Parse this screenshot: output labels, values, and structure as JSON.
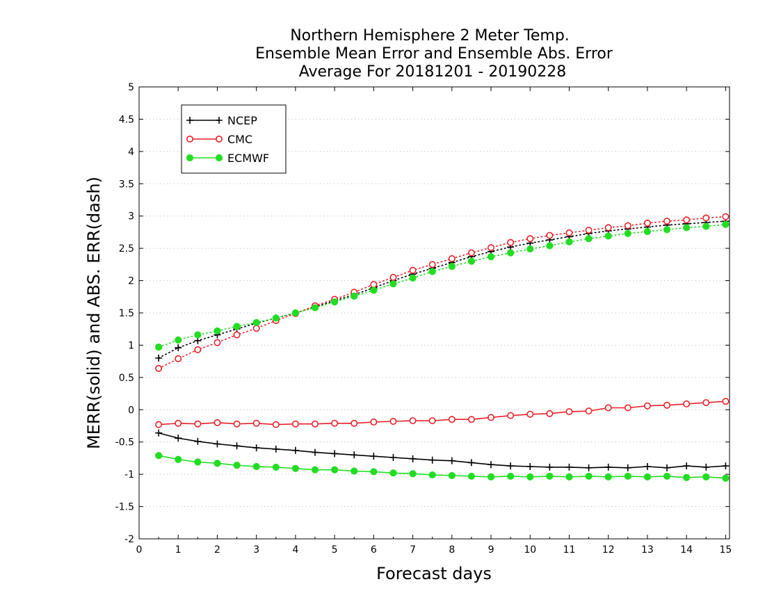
{
  "chart_data": {
    "type": "line",
    "title_lines": [
      "Northern Hemisphere 2 Meter Temp.",
      "Ensemble Mean Error and Ensemble Abs. Error",
      "Average For 20181201 - 20190228"
    ],
    "xlabel": "Forecast days",
    "ylabel": "MERR(solid) and ABS. ERR(dash)",
    "xlim": [
      0,
      15.1
    ],
    "ylim": [
      -2,
      5
    ],
    "xticks": [
      "0",
      "1",
      "2",
      "3",
      "4",
      "5",
      "6",
      "7",
      "8",
      "9",
      "10",
      "11",
      "12",
      "13",
      "14",
      "15"
    ],
    "yticks": [
      "-2",
      "-1.5",
      "-1",
      "-0.5",
      "0",
      "0.5",
      "1",
      "1.5",
      "2",
      "2.5",
      "3",
      "3.5",
      "4",
      "4.5",
      "5"
    ],
    "grid": "horizontal dotted",
    "legend_position": "top-left",
    "x": [
      0.5,
      1,
      1.5,
      2,
      2.5,
      3,
      3.5,
      4,
      4.5,
      5,
      5.5,
      6,
      6.5,
      7,
      7.5,
      8,
      8.5,
      9,
      9.5,
      10,
      10.5,
      11,
      11.5,
      12,
      12.5,
      13,
      13.5,
      14,
      14.5,
      15
    ],
    "series": [
      {
        "name": "NCEP",
        "color": "#000000",
        "marker": "plus",
        "merr": [
          -0.36,
          -0.44,
          -0.49,
          -0.53,
          -0.56,
          -0.59,
          -0.61,
          -0.63,
          -0.66,
          -0.68,
          -0.7,
          -0.72,
          -0.74,
          -0.76,
          -0.78,
          -0.79,
          -0.82,
          -0.85,
          -0.87,
          -0.88,
          -0.89,
          -0.89,
          -0.9,
          -0.89,
          -0.9,
          -0.88,
          -0.9,
          -0.87,
          -0.89,
          -0.87
        ],
        "abs_err": [
          0.8,
          0.96,
          1.07,
          1.16,
          1.25,
          1.34,
          1.42,
          1.5,
          1.59,
          1.69,
          1.78,
          1.89,
          2.0,
          2.1,
          2.19,
          2.28,
          2.37,
          2.45,
          2.52,
          2.58,
          2.63,
          2.68,
          2.73,
          2.77,
          2.8,
          2.83,
          2.86,
          2.88,
          2.9,
          2.92
        ]
      },
      {
        "name": "CMC",
        "color": "#e8202a",
        "marker": "open-circle",
        "merr": [
          -0.23,
          -0.21,
          -0.22,
          -0.2,
          -0.22,
          -0.21,
          -0.23,
          -0.22,
          -0.22,
          -0.21,
          -0.21,
          -0.19,
          -0.18,
          -0.17,
          -0.17,
          -0.15,
          -0.15,
          -0.12,
          -0.09,
          -0.07,
          -0.06,
          -0.03,
          -0.02,
          0.03,
          0.03,
          0.06,
          0.07,
          0.09,
          0.11,
          0.13
        ],
        "abs_err": [
          0.64,
          0.79,
          0.93,
          1.04,
          1.16,
          1.26,
          1.38,
          1.49,
          1.61,
          1.71,
          1.82,
          1.94,
          2.05,
          2.16,
          2.25,
          2.34,
          2.43,
          2.51,
          2.59,
          2.65,
          2.7,
          2.74,
          2.78,
          2.82,
          2.85,
          2.89,
          2.92,
          2.94,
          2.97,
          2.99
        ]
      },
      {
        "name": "ECMWF",
        "color": "#22dd22",
        "marker": "filled-circle",
        "merr": [
          -0.71,
          -0.77,
          -0.81,
          -0.83,
          -0.86,
          -0.88,
          -0.89,
          -0.91,
          -0.93,
          -0.93,
          -0.95,
          -0.96,
          -0.98,
          -0.99,
          -1.01,
          -1.02,
          -1.03,
          -1.04,
          -1.03,
          -1.04,
          -1.03,
          -1.04,
          -1.03,
          -1.04,
          -1.03,
          -1.04,
          -1.03,
          -1.05,
          -1.04,
          -1.06
        ],
        "abs_err": [
          0.97,
          1.08,
          1.16,
          1.22,
          1.29,
          1.35,
          1.42,
          1.5,
          1.58,
          1.67,
          1.76,
          1.85,
          1.95,
          2.04,
          2.14,
          2.22,
          2.3,
          2.37,
          2.43,
          2.49,
          2.54,
          2.6,
          2.65,
          2.69,
          2.73,
          2.76,
          2.79,
          2.82,
          2.84,
          2.87
        ]
      }
    ]
  }
}
